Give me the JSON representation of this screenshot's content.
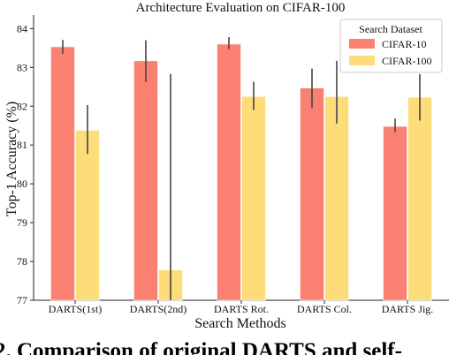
{
  "chart_data": {
    "type": "bar",
    "title": "Architecture Evaluation on CIFAR-100",
    "xlabel": "Search Methods",
    "ylabel": "Top-1 Accuracy (%)",
    "categories": [
      "DARTS(1st)",
      "DARTS(2nd)",
      "DARTS Rot.",
      "DARTS Col.",
      "DARTS Jig."
    ],
    "ylim": [
      77,
      84.35
    ],
    "yticks": [
      "77",
      "78",
      "79",
      "80",
      "81",
      "82",
      "83",
      "84"
    ],
    "legend": {
      "title": "Search Dataset",
      "placement": "top-right"
    },
    "grid": false,
    "series": [
      {
        "name": "CIFAR-10",
        "color": "#fa8072",
        "values": [
          83.53,
          83.17,
          83.6,
          82.47,
          81.48
        ],
        "error_low": [
          83.35,
          82.62,
          83.47,
          81.95,
          81.33
        ],
        "error_high": [
          83.71,
          83.7,
          83.78,
          82.97,
          81.68
        ]
      },
      {
        "name": "CIFAR-100",
        "color": "#fddc7a",
        "values": [
          81.38,
          77.78,
          82.25,
          82.25,
          82.23
        ],
        "error_low": [
          80.77,
          77.0,
          81.9,
          81.55,
          81.63
        ],
        "error_high": [
          82.03,
          82.83,
          82.63,
          83.17,
          82.83
        ]
      }
    ]
  },
  "caption": "2. Comparison of original DARTS and self-"
}
